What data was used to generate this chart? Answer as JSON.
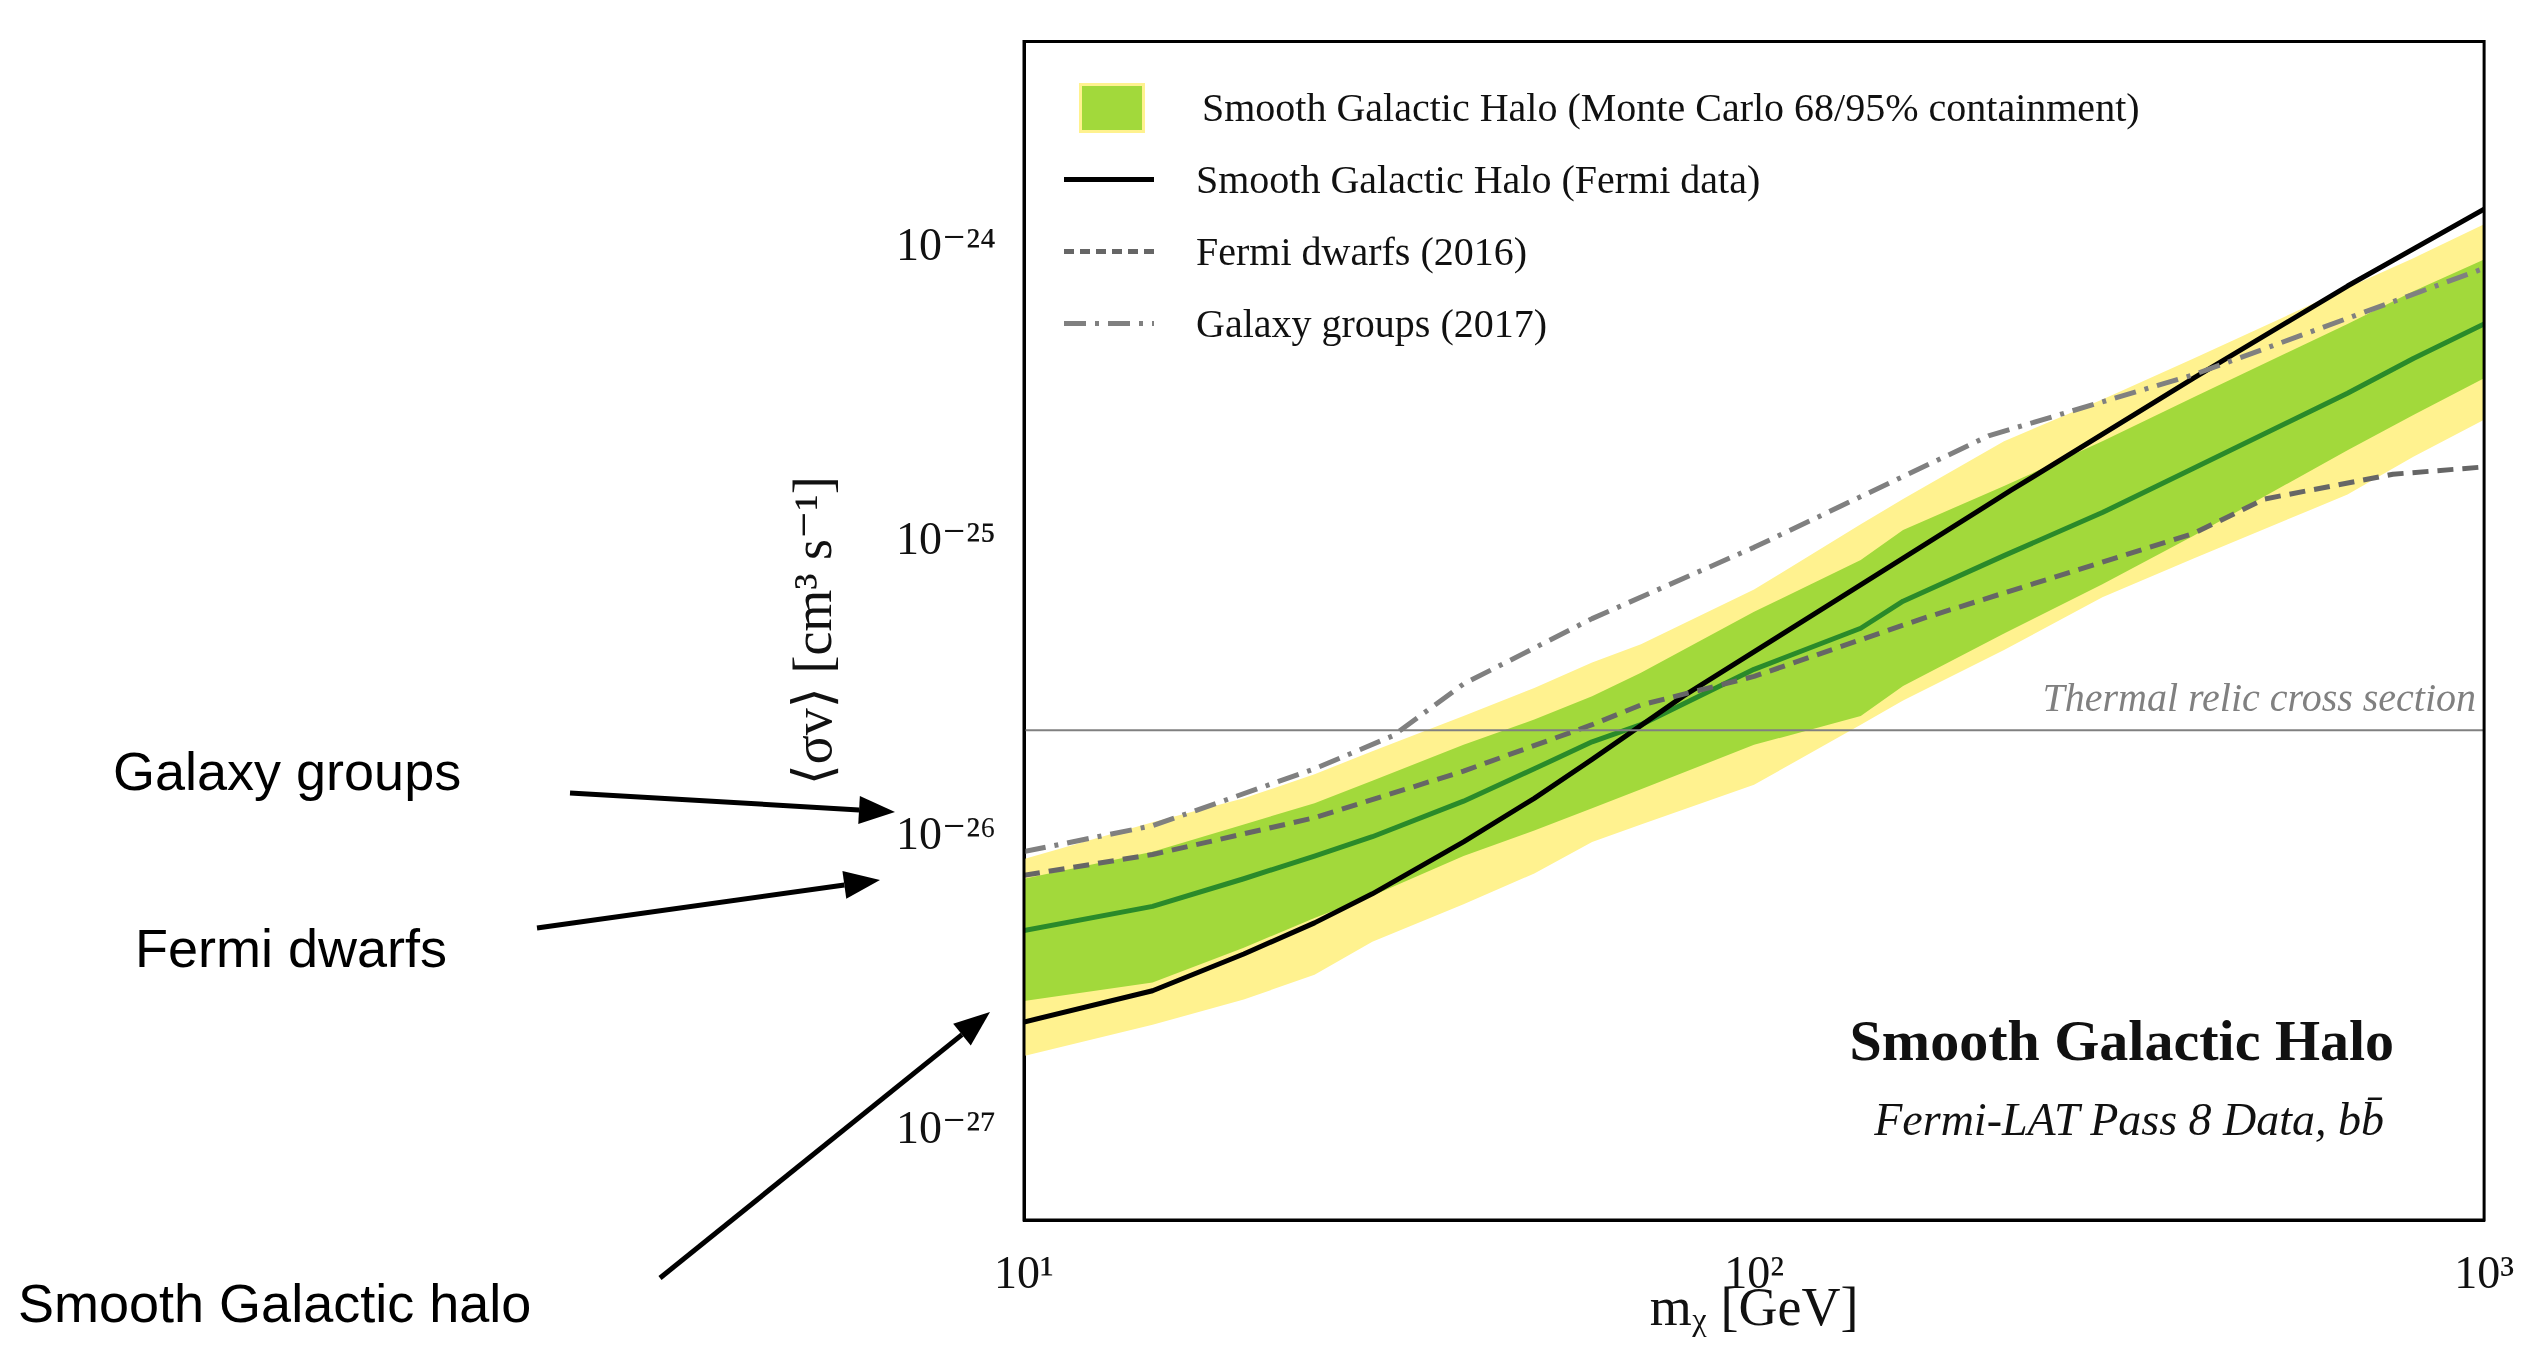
{
  "chart_data": {
    "type": "line",
    "title": "Smooth Galactic Halo",
    "subtitle": "Fermi-LAT Pass 8 Data, bb̄",
    "xlabel": "mᵪ [GeV]",
    "ylabel": "⟨σv⟩ [cm³ s⁻¹]",
    "log": "xy",
    "legend": "top left",
    "xlim": [
      10,
      1000
    ],
    "ylim": [
      5e-28,
      5e-24
    ],
    "xticks": [
      {
        "value": 10,
        "label": "10¹"
      },
      {
        "value": 100,
        "label": "10²"
      },
      {
        "value": 1000,
        "label": "10³"
      }
    ],
    "yticks": [
      {
        "value": 1e-27,
        "label": "10⁻²⁷"
      },
      {
        "value": 1e-26,
        "label": "10⁻²⁶"
      },
      {
        "value": 1e-25,
        "label": "10⁻²⁵"
      },
      {
        "value": 1e-24,
        "label": "10⁻²⁴"
      }
    ],
    "series": [
      {
        "name": "Smooth Galactic Halo (Monte Carlo 68/95% containment)",
        "color": "#a2d93b",
        "x": [
          10,
          15,
          20,
          25,
          30,
          40,
          50,
          60,
          70,
          100,
          140,
          160,
          220,
          300,
          400,
          650,
          800,
          1000
        ],
        "values": [
          null,
          null,
          null,
          null,
          null,
          null,
          null,
          null,
          null,
          null,
          null,
          null,
          null,
          null,
          null,
          null,
          null,
          null
        ],
        "lower": [
          2.77e-27,
          3.2e-27,
          4.2e-27,
          5.3e-27,
          6.3e-27,
          8.6e-27,
          1.05e-26,
          1.25e-26,
          1.45e-26,
          2.05e-26,
          2.57e-26,
          3.25e-26,
          4.9e-26,
          7.2e-26,
          1.05e-25,
          2.05e-25,
          2.7e-25,
          3.6e-25
        ],
        "upper": [
          7.2e-27,
          8.9e-27,
          1.1e-26,
          1.3e-26,
          1.55e-26,
          2.05e-26,
          2.5e-26,
          3e-26,
          3.6e-26,
          5.8e-26,
          8.7e-26,
          1.1e-25,
          1.55e-25,
          2.2e-25,
          3.1e-25,
          5.5e-25,
          7.1e-25,
          9.1e-25
        ]
      },
      {
        "color": "#fff28f",
        "x": [
          10,
          15,
          20,
          25,
          30,
          40,
          50,
          60,
          70,
          100,
          140,
          160,
          220,
          300,
          400,
          650,
          800,
          1000
        ],
        "values": [
          null,
          null,
          null,
          null,
          null,
          null,
          null,
          null,
          null,
          null,
          null,
          null,
          null,
          null,
          null,
          null,
          null,
          null
        ],
        "lower": [
          1.8e-27,
          2.3e-27,
          2.8e-27,
          3.4e-27,
          4.4e-27,
          5.9e-27,
          7.5e-27,
          9.6e-27,
          1.1e-26,
          1.5e-26,
          2.4e-26,
          2.9e-26,
          4.3e-26,
          6.5e-26,
          8.8e-26,
          1.45e-25,
          1.95e-25,
          2.6e-25
        ],
        "upper": [
          8.4e-27,
          1.12e-26,
          1.35e-26,
          1.63e-26,
          1.95e-26,
          2.57e-26,
          3.2e-26,
          3.9e-26,
          4.5e-26,
          6.9e-26,
          1.15e-25,
          1.4e-25,
          2.2e-25,
          3.05e-25,
          4.2e-25,
          7.3e-25,
          9.2e-25,
          1.2e-24
        ]
      },
      {
        "color": "#2a8a2a",
        "x": [
          10,
          15,
          20,
          25,
          30,
          40,
          50,
          60,
          70,
          100,
          140,
          160,
          220,
          300,
          400,
          650,
          800,
          1000
        ],
        "values": [
          4.8e-27,
          5.8e-27,
          7.2e-27,
          8.6e-27,
          1e-26,
          1.32e-26,
          1.7e-26,
          2.1e-26,
          2.4e-26,
          3.7e-26,
          5.1e-26,
          6.3e-26,
          9e-26,
          1.26e-25,
          1.78e-25,
          3.2e-25,
          4.2e-25,
          5.5e-25
        ]
      },
      {
        "name": "Smooth Galactic Halo (Fermi data)",
        "color": "#000000",
        "line_style": "solid",
        "x": [
          10,
          15,
          20,
          25,
          30,
          40,
          50,
          60,
          80,
          125,
          225,
          400,
          650,
          1000
        ],
        "values": [
          2.35e-27,
          3e-27,
          4e-27,
          5.1e-27,
          6.4e-27,
          9.6e-27,
          1.35e-26,
          1.83e-26,
          3e-26,
          6e-26,
          1.5e-25,
          3.6e-25,
          7.4e-25,
          1.35e-24
        ]
      },
      {
        "name": "Fermi dwarfs (2016)",
        "color": "#666666",
        "line_style": "dashed",
        "x": [
          10,
          15,
          25,
          40,
          60,
          70,
          100,
          170,
          400,
          500,
          750,
          1000
        ],
        "values": [
          7.4e-27,
          8.7e-27,
          1.16e-26,
          1.67e-26,
          2.4e-26,
          2.8e-26,
          3.5e-26,
          5.5e-26,
          1.07e-25,
          1.4e-25,
          1.7e-25,
          1.8e-25
        ]
      },
      {
        "name": "Galaxy groups (2017)",
        "color": "#808080",
        "line_style": "dashdot",
        "x": [
          10,
          15,
          25,
          32,
          40,
          60,
          100,
          210,
          400,
          1000
        ],
        "values": [
          8.9e-27,
          1.09e-26,
          1.7e-26,
          2.2e-26,
          3.3e-26,
          5.5e-26,
          9.6e-26,
          2.3e-25,
          3.7e-25,
          8.5e-25
        ]
      }
    ],
    "ref_lines": [
      {
        "axis": "y",
        "value": 2.3e-26,
        "label": "Thermal relic cross section",
        "color": "#808080"
      }
    ],
    "annotations": [
      "Galaxy groups",
      "Fermi dwarfs",
      "Smooth Galactic halo"
    ]
  }
}
